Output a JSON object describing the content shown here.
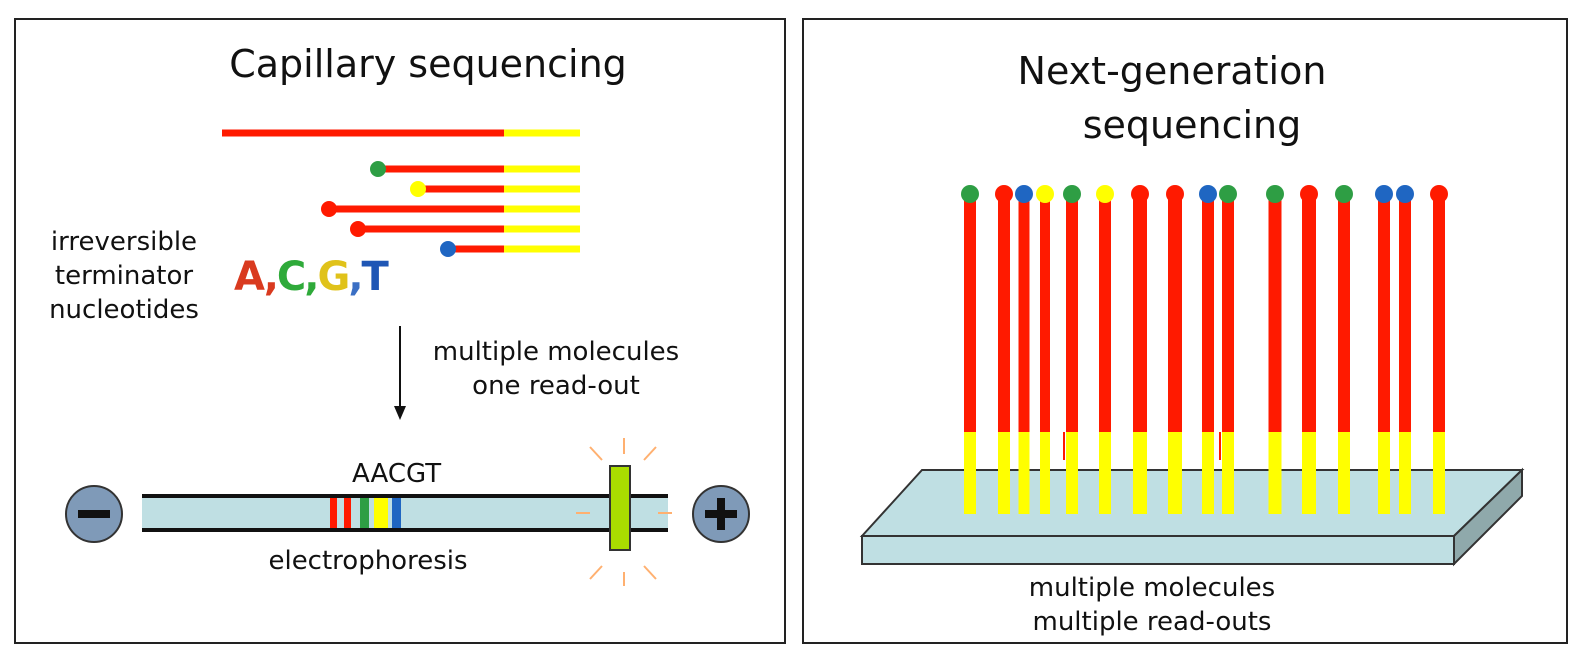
{
  "left_panel": {
    "title": "Capillary sequencing",
    "terminator_label": [
      "irreversible",
      "terminator",
      "nucleotides"
    ],
    "nucleotides": [
      {
        "letter": "A",
        "color": "#d93a1f"
      },
      {
        "letter": ",",
        "color": "#d93a1f"
      },
      {
        "letter": "C",
        "color": "#2faa3a"
      },
      {
        "letter": ",",
        "color": "#2faa3a"
      },
      {
        "letter": "G",
        "color": "#e0c21a"
      },
      {
        "letter": ",",
        "color": "#3b6fc4"
      },
      {
        "letter": "T",
        "color": "#1f56b5"
      }
    ],
    "readout_label": [
      "multiple molecules",
      "one read-out"
    ],
    "sequence_label": "AACGT",
    "electrophoresis_label": "electrophoresis",
    "minus_symbol": "−",
    "plus_symbol": "+"
  },
  "right_panel": {
    "title": [
      "Next-generation",
      "sequencing"
    ],
    "readout_label": [
      "multiple molecules",
      "multiple read-outs"
    ]
  },
  "colors": {
    "red": "#ff1a00",
    "yellow": "#ffff00",
    "green": "#2e9e44",
    "blue": "#1f66c2",
    "gel": "#bfdfe3",
    "electrode": "#7f9ab8",
    "band_marker": "#aadd00"
  }
}
